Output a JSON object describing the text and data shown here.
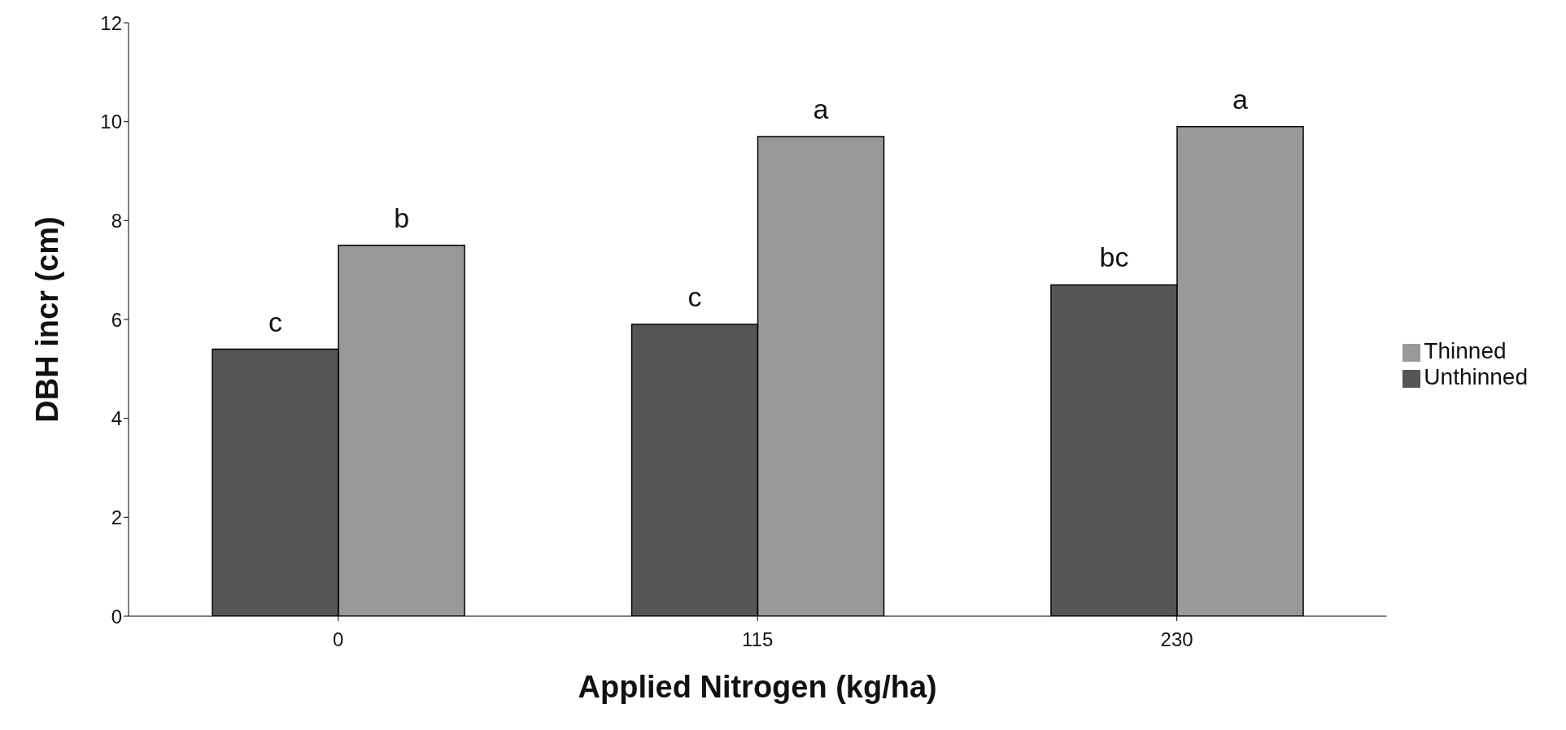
{
  "chart_data": {
    "type": "bar",
    "xlabel": "Applied Nitrogen (kg/ha)",
    "ylabel": "DBH incr (cm)",
    "categories": [
      "0",
      "115",
      "230"
    ],
    "series": [
      {
        "name": "Unthinned",
        "color": "#555555",
        "values": [
          5.4,
          5.9,
          6.7
        ]
      },
      {
        "name": "Thinned",
        "color": "#999999",
        "values": [
          7.5,
          9.7,
          9.9
        ]
      }
    ],
    "ylim": [
      0,
      12
    ],
    "yticks": [
      0,
      2,
      4,
      6,
      8,
      10,
      12
    ],
    "grid": false,
    "legend": "right",
    "annotations": [
      {
        "text": "c",
        "x": "0",
        "y": 5.4
      },
      {
        "text": "b",
        "x": "0",
        "y": 7.5
      },
      {
        "text": "c",
        "x": "115",
        "y": 5.9
      },
      {
        "text": "a",
        "x": "115",
        "y": 9.7
      },
      {
        "text": "bc",
        "x": "230",
        "y": 6.7
      },
      {
        "text": "a",
        "x": "230",
        "y": 9.9
      }
    ]
  }
}
